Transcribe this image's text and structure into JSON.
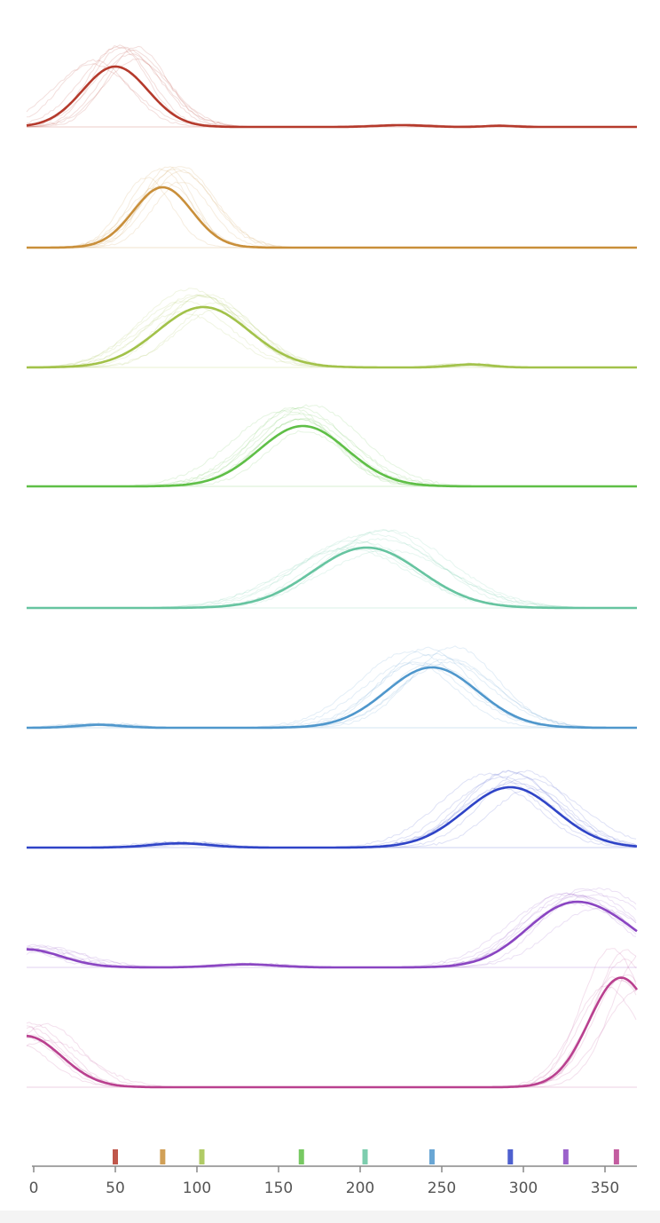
{
  "chart_data": {
    "type": "line",
    "subtype": "stacked ridgeline of smoothed traces, faint individual trials behind each mean curve",
    "xlim": [
      0,
      370
    ],
    "xticks": [
      0,
      50,
      100,
      150,
      200,
      250,
      300,
      350
    ],
    "tick_labels": [
      "0",
      "50",
      "100",
      "150",
      "200",
      "250",
      "300",
      "350"
    ],
    "grid": false,
    "legend": "none",
    "series": [
      {
        "color": "#b53a2c",
        "marker": 50,
        "peaks": [
          {
            "center": 50,
            "width": 20,
            "amp": 1.0
          },
          {
            "center": 225,
            "width": 14,
            "amp": 0.03
          },
          {
            "center": 285,
            "width": 8,
            "amp": 0.02
          }
        ],
        "baseline_gap": [
          75,
          370
        ]
      },
      {
        "color": "#c98f3a",
        "marker": 79,
        "peaks": [
          {
            "center": 79,
            "width": 18,
            "amp": 1.0
          }
        ]
      },
      {
        "color": "#a2c24a",
        "marker": 103,
        "peaks": [
          {
            "center": 104,
            "width": 28,
            "amp": 1.0
          },
          {
            "center": 268,
            "width": 12,
            "amp": 0.05
          }
        ]
      },
      {
        "color": "#5fbf47",
        "marker": 164,
        "peaks": [
          {
            "center": 165,
            "width": 27,
            "amp": 1.0
          }
        ]
      },
      {
        "color": "#66c4a0",
        "marker": 203,
        "peaks": [
          {
            "center": 204,
            "width": 33,
            "amp": 1.0
          }
        ]
      },
      {
        "color": "#4f97cc",
        "marker": 244,
        "peaks": [
          {
            "center": 244,
            "width": 28,
            "amp": 1.0
          },
          {
            "center": 40,
            "width": 14,
            "amp": 0.05
          }
        ]
      },
      {
        "color": "#2f44c7",
        "marker": 292,
        "peaks": [
          {
            "center": 292,
            "width": 28,
            "amp": 1.0
          },
          {
            "center": 90,
            "width": 18,
            "amp": 0.07
          }
        ]
      },
      {
        "color": "#8a45c2",
        "marker": 326,
        "peaks": [
          {
            "center": 328,
            "width": 27,
            "amp": 1.0
          },
          {
            "center": 130,
            "width": 18,
            "amp": 0.05
          },
          {
            "center": -5,
            "width": 22,
            "amp": 0.3
          }
        ]
      },
      {
        "color": "#b9408f",
        "marker": 357,
        "peaks": [
          {
            "center": 357,
            "width": 18,
            "amp": 1.0
          },
          {
            "center": -5,
            "width": 22,
            "amp": 0.85
          }
        ]
      }
    ]
  }
}
